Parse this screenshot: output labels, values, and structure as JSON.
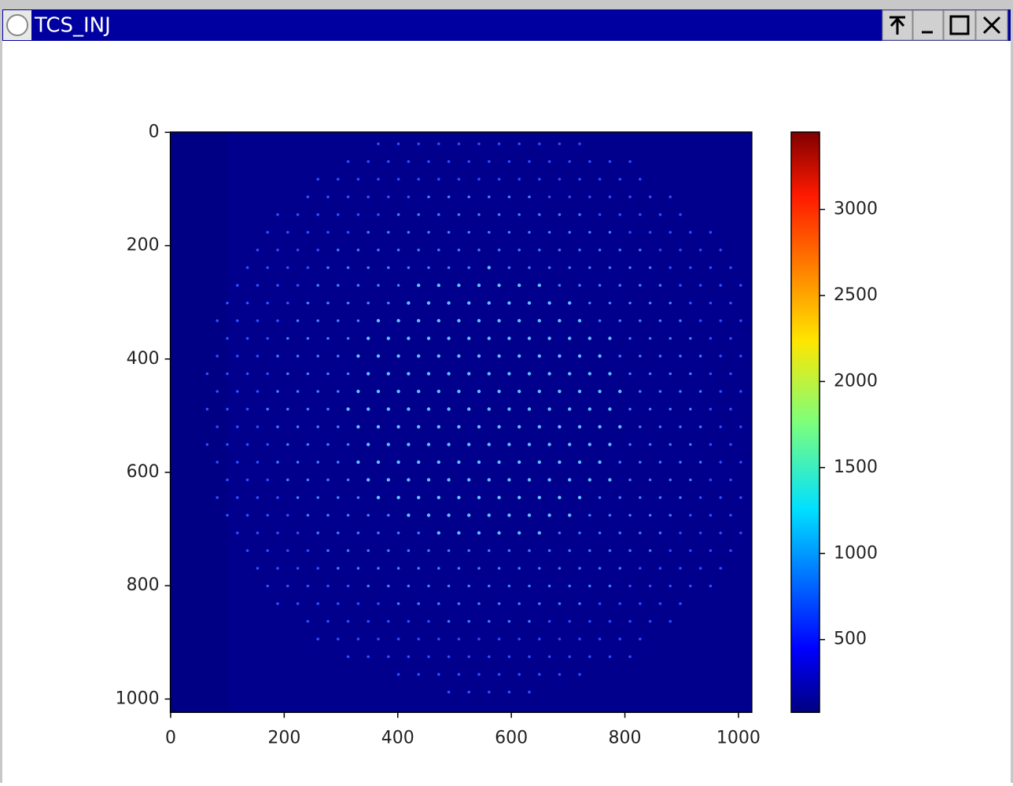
{
  "window": {
    "title": "TCS_INJ"
  },
  "chart_data": {
    "type": "image",
    "colormap": "jet",
    "xlim": [
      -0.5,
      1023.5
    ],
    "ylim": [
      -0.5,
      1023.5
    ],
    "y_inverted": true,
    "xticks": [
      0,
      200,
      400,
      600,
      800,
      1000
    ],
    "yticks": [
      0,
      200,
      400,
      600,
      800,
      1000
    ],
    "colorbar": {
      "clim": [
        77,
        3450
      ],
      "ticks": [
        500,
        1000,
        1500,
        2000,
        2500,
        3000
      ]
    }
  }
}
